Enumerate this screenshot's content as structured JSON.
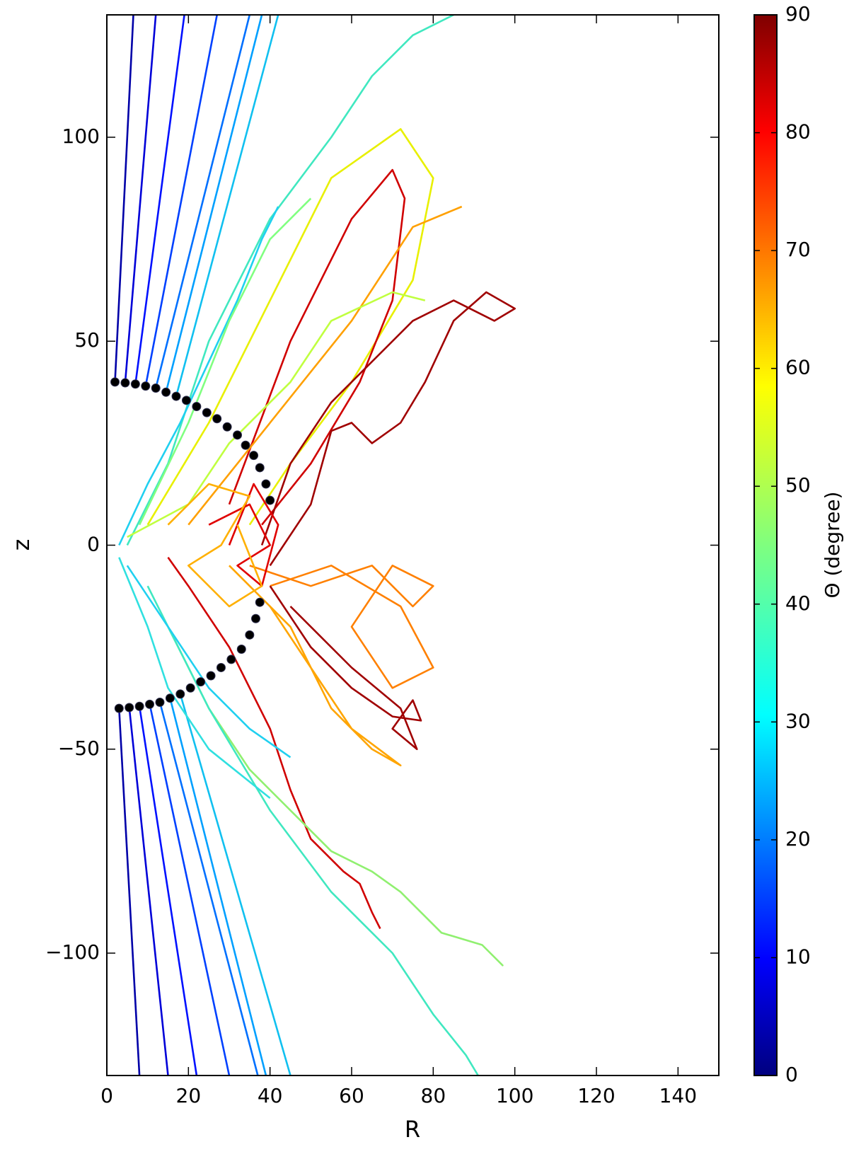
{
  "chart_data": {
    "type": "line",
    "xlabel": "R",
    "ylabel": "z",
    "xlim": [
      0,
      150
    ],
    "xticks": [
      0,
      20,
      40,
      60,
      80,
      100,
      120,
      140
    ],
    "ylim": [
      -130,
      130
    ],
    "yticks": [
      {
        "value": -100,
        "label": "−100"
      },
      {
        "value": -50,
        "label": "−50"
      },
      0,
      50,
      100
    ],
    "colorbar": {
      "label": "Θ (degree)",
      "lim": [
        0,
        90
      ],
      "ticks": [
        0,
        10,
        20,
        30,
        40,
        50,
        60,
        70,
        80,
        90
      ]
    },
    "series": [
      {
        "color": "#0000a8",
        "x": [
          2,
          6.5
        ],
        "y": [
          40,
          130
        ]
      },
      {
        "color": "#0000d8",
        "x": [
          4.5,
          12
        ],
        "y": [
          39.8,
          130
        ]
      },
      {
        "color": "#0010ff",
        "x": [
          7,
          19
        ],
        "y": [
          39.5,
          130
        ]
      },
      {
        "color": "#0040ff",
        "x": [
          9.5,
          27
        ],
        "y": [
          39,
          130
        ]
      },
      {
        "color": "#0070ff",
        "x": [
          12,
          35
        ],
        "y": [
          38.5,
          130
        ]
      },
      {
        "color": "#00a0ff",
        "x": [
          14.5,
          38
        ],
        "y": [
          37.5,
          130
        ]
      },
      {
        "color": "#10c0f0",
        "x": [
          17,
          42
        ],
        "y": [
          36.5,
          130
        ]
      },
      {
        "color": "#0000a8",
        "x": [
          3,
          8
        ],
        "y": [
          -40,
          -130
        ]
      },
      {
        "color": "#0000d8",
        "x": [
          5.5,
          15
        ],
        "y": [
          -39.8,
          -130
        ]
      },
      {
        "color": "#0010ff",
        "x": [
          8,
          22
        ],
        "y": [
          -39.5,
          -130
        ]
      },
      {
        "color": "#0040ff",
        "x": [
          10.5,
          30
        ],
        "y": [
          -39,
          -130
        ]
      },
      {
        "color": "#0070ff",
        "x": [
          13,
          37
        ],
        "y": [
          -38.5,
          -130
        ]
      },
      {
        "color": "#00a0ff",
        "x": [
          15.5,
          39
        ],
        "y": [
          -37.5,
          -130
        ]
      },
      {
        "color": "#10c0f0",
        "x": [
          18,
          45
        ],
        "y": [
          -36.5,
          -130
        ]
      },
      {
        "color": "#40e8c0",
        "x": [
          5,
          15,
          25,
          40,
          55,
          65,
          75,
          85
        ],
        "y": [
          0,
          20,
          50,
          80,
          100,
          115,
          125,
          130
        ]
      },
      {
        "color": "#20d0f0",
        "x": [
          3,
          10,
          18,
          25,
          32,
          38,
          42
        ],
        "y": [
          0,
          15,
          30,
          45,
          60,
          75,
          83
        ]
      },
      {
        "color": "#80ff80",
        "x": [
          8,
          20,
          30,
          40,
          50
        ],
        "y": [
          5,
          30,
          55,
          75,
          85
        ]
      },
      {
        "color": "#e8f000",
        "x": [
          10,
          25,
          40,
          55,
          72,
          80,
          75,
          60,
          45,
          35
        ],
        "y": [
          5,
          30,
          60,
          90,
          102,
          90,
          65,
          40,
          20,
          5
        ]
      },
      {
        "color": "#d00000",
        "x": [
          30,
          45,
          60,
          70,
          73,
          70,
          62,
          50,
          38
        ],
        "y": [
          10,
          50,
          80,
          92,
          85,
          60,
          40,
          20,
          5
        ]
      },
      {
        "color": "#ffa000",
        "x": [
          20,
          40,
          60,
          75,
          87
        ],
        "y": [
          5,
          30,
          55,
          78,
          83
        ]
      },
      {
        "color": "#c0ff40",
        "x": [
          5,
          20,
          30,
          45,
          55,
          70,
          78
        ],
        "y": [
          2,
          10,
          25,
          40,
          55,
          62,
          60
        ]
      },
      {
        "color": "#a00000",
        "x": [
          38,
          45,
          55,
          65,
          75,
          85,
          95,
          100,
          93,
          85,
          78,
          72,
          65,
          60,
          55,
          50,
          40
        ],
        "y": [
          0,
          20,
          35,
          45,
          55,
          60,
          55,
          58,
          62,
          55,
          40,
          30,
          25,
          30,
          28,
          10,
          -5
        ]
      },
      {
        "color": "#ff8000",
        "x": [
          35,
          50,
          65,
          75,
          80,
          70,
          60,
          70,
          80,
          72,
          55,
          40
        ],
        "y": [
          -5,
          -10,
          -5,
          -15,
          -10,
          -5,
          -20,
          -35,
          -30,
          -15,
          -5,
          -10
        ]
      },
      {
        "color": "#a00000",
        "x": [
          40,
          50,
          60,
          70,
          77,
          75,
          70,
          76,
          72,
          60,
          45
        ],
        "y": [
          -10,
          -25,
          -35,
          -42,
          -43,
          -38,
          -45,
          -50,
          -40,
          -30,
          -15
        ]
      },
      {
        "color": "#ffa500",
        "x": [
          30,
          45,
          55,
          65,
          72,
          60,
          50,
          40
        ],
        "y": [
          -5,
          -20,
          -40,
          -50,
          -54,
          -45,
          -30,
          -15
        ]
      },
      {
        "color": "#d00000",
        "x": [
          15,
          20,
          30,
          40,
          45,
          50,
          58,
          62,
          65,
          67
        ],
        "y": [
          -3,
          -10,
          -25,
          -45,
          -60,
          -72,
          -80,
          -83,
          -90,
          -94
        ]
      },
      {
        "color": "#90f070",
        "x": [
          15,
          25,
          35,
          45,
          55,
          65,
          72,
          82,
          92,
          97,
          92
        ],
        "y": [
          -20,
          -40,
          -55,
          -65,
          -75,
          -80,
          -85,
          -95,
          -98,
          -103,
          -98
        ]
      },
      {
        "color": "#40e8c0",
        "x": [
          10,
          25,
          40,
          55,
          70,
          80,
          88,
          91
        ],
        "y": [
          -10,
          -40,
          -65,
          -85,
          -100,
          -115,
          -125,
          -130
        ]
      },
      {
        "color": "#20d0f0",
        "x": [
          5,
          15,
          25,
          35,
          45
        ],
        "y": [
          -5,
          -20,
          -35,
          -45,
          -52
        ]
      },
      {
        "color": "#30e0e0",
        "x": [
          3,
          10,
          15,
          25,
          40
        ],
        "y": [
          -3,
          -20,
          -35,
          -50,
          -62
        ]
      },
      {
        "color": "#e00000",
        "x": [
          25,
          35,
          40,
          32,
          38,
          42,
          36,
          30
        ],
        "y": [
          5,
          10,
          0,
          -5,
          -10,
          5,
          15,
          0
        ]
      },
      {
        "color": "#ffb000",
        "x": [
          15,
          25,
          35,
          28,
          20,
          30,
          38,
          32
        ],
        "y": [
          5,
          15,
          12,
          0,
          -5,
          -15,
          -10,
          5
        ]
      }
    ],
    "points": {
      "color": "#000000",
      "x": [
        2,
        4.5,
        7,
        9.5,
        12,
        14.5,
        17,
        19.5,
        22,
        24.5,
        27,
        29.5,
        32,
        34,
        36,
        37.5,
        39,
        40,
        3,
        5.5,
        8,
        10.5,
        13,
        15.5,
        18,
        20.5,
        23,
        25.5,
        28,
        30.5,
        33,
        35,
        36.5,
        37.5
      ],
      "y": [
        40,
        39.8,
        39.5,
        39,
        38.5,
        37.5,
        36.5,
        35.5,
        34,
        32.5,
        31,
        29,
        27,
        24.5,
        22,
        19,
        15,
        11,
        -40,
        -39.8,
        -39.5,
        -39,
        -38.5,
        -37.5,
        -36.5,
        -35,
        -33.5,
        -32,
        -30,
        -28,
        -25.5,
        -22,
        -18,
        -14
      ]
    }
  }
}
